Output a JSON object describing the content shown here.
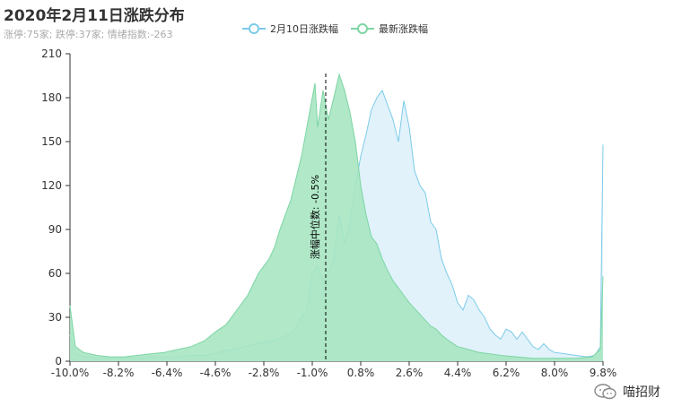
{
  "title": "2020年2月11日涨跌分布",
  "subtitle": "涨停:75家; 跌停:37家; 情绪指数:-263",
  "legend": [
    {
      "name": "2月10日涨跌幅",
      "color": "#7ccbe8"
    },
    {
      "name": "最新涨跌幅",
      "color": "#7dd5a3"
    }
  ],
  "watermark": "喵招财",
  "chart_data": {
    "type": "area",
    "title": "2020年2月11日涨跌分布",
    "ylim": [
      0,
      210
    ],
    "xlim": [
      -10.0,
      9.8
    ],
    "y_ticks": [
      0,
      30,
      60,
      90,
      120,
      150,
      180,
      210
    ],
    "x_ticks": [
      "-10.0%",
      "-8.2%",
      "-6.4%",
      "-4.6%",
      "-2.8%",
      "-1.0%",
      "0.8%",
      "2.6%",
      "4.4%",
      "6.2%",
      "8.0%",
      "9.8%"
    ],
    "median_label": "涨幅中位数: -0.5%",
    "median_x": -0.5,
    "series": [
      {
        "name": "2月10日涨跌幅",
        "color": "#7ccbe8",
        "fill": "#dcf0fa",
        "points": [
          [
            -10.0,
            18
          ],
          [
            -9.8,
            5
          ],
          [
            -9.5,
            3
          ],
          [
            -9.0,
            2
          ],
          [
            -8.5,
            2
          ],
          [
            -8.0,
            2
          ],
          [
            -7.5,
            2
          ],
          [
            -7.0,
            3
          ],
          [
            -6.5,
            3
          ],
          [
            -6.0,
            3
          ],
          [
            -5.5,
            4
          ],
          [
            -5.0,
            4
          ],
          [
            -4.5,
            6
          ],
          [
            -4.0,
            8
          ],
          [
            -3.5,
            10
          ],
          [
            -3.0,
            12
          ],
          [
            -2.5,
            14
          ],
          [
            -2.0,
            17
          ],
          [
            -1.7,
            20
          ],
          [
            -1.4,
            30
          ],
          [
            -1.2,
            35
          ],
          [
            -1.0,
            60
          ],
          [
            -0.8,
            65
          ],
          [
            -0.6,
            55
          ],
          [
            -0.4,
            60
          ],
          [
            -0.2,
            70
          ],
          [
            0.0,
            100
          ],
          [
            0.2,
            80
          ],
          [
            0.4,
            95
          ],
          [
            0.6,
            120
          ],
          [
            0.8,
            140
          ],
          [
            1.0,
            155
          ],
          [
            1.2,
            172
          ],
          [
            1.4,
            180
          ],
          [
            1.6,
            185
          ],
          [
            1.8,
            175
          ],
          [
            2.0,
            165
          ],
          [
            2.2,
            150
          ],
          [
            2.4,
            178
          ],
          [
            2.6,
            160
          ],
          [
            2.8,
            130
          ],
          [
            3.0,
            120
          ],
          [
            3.2,
            115
          ],
          [
            3.4,
            95
          ],
          [
            3.6,
            90
          ],
          [
            3.8,
            70
          ],
          [
            4.0,
            60
          ],
          [
            4.2,
            52
          ],
          [
            4.4,
            40
          ],
          [
            4.6,
            35
          ],
          [
            4.8,
            45
          ],
          [
            5.0,
            42
          ],
          [
            5.2,
            35
          ],
          [
            5.4,
            30
          ],
          [
            5.6,
            22
          ],
          [
            5.8,
            18
          ],
          [
            6.0,
            15
          ],
          [
            6.2,
            22
          ],
          [
            6.4,
            20
          ],
          [
            6.6,
            15
          ],
          [
            6.8,
            20
          ],
          [
            7.0,
            15
          ],
          [
            7.2,
            10
          ],
          [
            7.4,
            8
          ],
          [
            7.6,
            12
          ],
          [
            7.8,
            8
          ],
          [
            8.0,
            6
          ],
          [
            8.4,
            5
          ],
          [
            8.8,
            4
          ],
          [
            9.2,
            3
          ],
          [
            9.5,
            4
          ],
          [
            9.7,
            10
          ],
          [
            9.8,
            148
          ]
        ]
      },
      {
        "name": "最新涨跌幅",
        "color": "#7dd5a3",
        "fill": "#a7e5c2",
        "points": [
          [
            -10.0,
            38
          ],
          [
            -9.8,
            10
          ],
          [
            -9.5,
            6
          ],
          [
            -9.0,
            4
          ],
          [
            -8.5,
            3
          ],
          [
            -8.0,
            3
          ],
          [
            -7.5,
            4
          ],
          [
            -7.0,
            5
          ],
          [
            -6.5,
            6
          ],
          [
            -6.0,
            8
          ],
          [
            -5.5,
            10
          ],
          [
            -5.0,
            14
          ],
          [
            -4.6,
            20
          ],
          [
            -4.2,
            25
          ],
          [
            -3.8,
            35
          ],
          [
            -3.4,
            45
          ],
          [
            -3.0,
            60
          ],
          [
            -2.8,
            65
          ],
          [
            -2.6,
            70
          ],
          [
            -2.4,
            78
          ],
          [
            -2.2,
            90
          ],
          [
            -2.0,
            100
          ],
          [
            -1.8,
            110
          ],
          [
            -1.6,
            125
          ],
          [
            -1.4,
            140
          ],
          [
            -1.2,
            160
          ],
          [
            -1.0,
            180
          ],
          [
            -0.9,
            190
          ],
          [
            -0.8,
            160
          ],
          [
            -0.6,
            185
          ],
          [
            -0.4,
            165
          ],
          [
            -0.2,
            180
          ],
          [
            0.0,
            196
          ],
          [
            0.2,
            185
          ],
          [
            0.4,
            170
          ],
          [
            0.6,
            150
          ],
          [
            0.8,
            120
          ],
          [
            1.0,
            100
          ],
          [
            1.2,
            85
          ],
          [
            1.4,
            80
          ],
          [
            1.6,
            70
          ],
          [
            1.8,
            62
          ],
          [
            2.0,
            55
          ],
          [
            2.2,
            50
          ],
          [
            2.4,
            45
          ],
          [
            2.6,
            40
          ],
          [
            2.8,
            36
          ],
          [
            3.0,
            32
          ],
          [
            3.2,
            28
          ],
          [
            3.4,
            24
          ],
          [
            3.6,
            22
          ],
          [
            3.8,
            18
          ],
          [
            4.0,
            15
          ],
          [
            4.4,
            10
          ],
          [
            4.8,
            8
          ],
          [
            5.2,
            6
          ],
          [
            5.6,
            5
          ],
          [
            6.0,
            4
          ],
          [
            6.6,
            3
          ],
          [
            7.2,
            2
          ],
          [
            8.0,
            2
          ],
          [
            8.8,
            2
          ],
          [
            9.4,
            3
          ],
          [
            9.7,
            8
          ],
          [
            9.8,
            58
          ]
        ]
      }
    ]
  }
}
